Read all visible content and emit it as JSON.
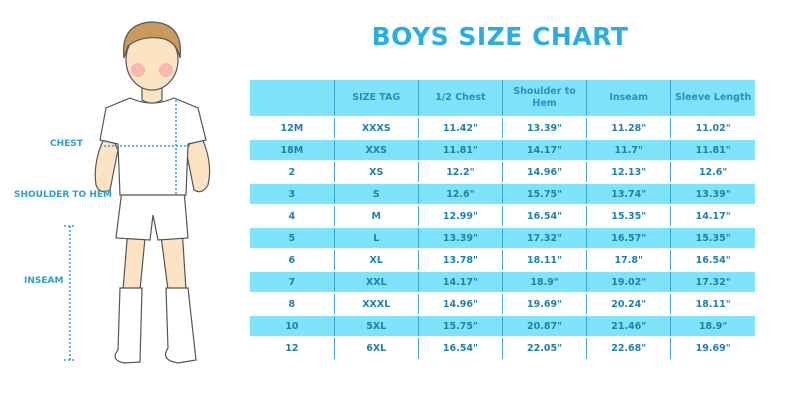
{
  "title": "BOYS SIZE CHART",
  "labels": {
    "chest": "CHEST",
    "shoulder": "SHOULDER TO HEM",
    "inseam": "INSEAM"
  },
  "colors": {
    "accent": "#2aaee2",
    "row_fill": "#7ee4fb",
    "text": "#1f7fae"
  },
  "headers": [
    "",
    "SIZE TAG",
    "1/2 Chest",
    "Shoulder to Hem",
    "Inseam",
    "Sleeve Length"
  ],
  "rows": [
    [
      "12M",
      "XXXS",
      "11.42\"",
      "13.39\"",
      "11.28\"",
      "11.02\""
    ],
    [
      "18M",
      "XXS",
      "11.81\"",
      "14.17\"",
      "11.7\"",
      "11.81\""
    ],
    [
      "2",
      "XS",
      "12.2\"",
      "14.96\"",
      "12.13\"",
      "12.6\""
    ],
    [
      "3",
      "S",
      "12.6\"",
      "15.75\"",
      "13.74\"",
      "13.39\""
    ],
    [
      "4",
      "M",
      "12.99\"",
      "16.54\"",
      "15.35\"",
      "14.17\""
    ],
    [
      "5",
      "L",
      "13.39\"",
      "17.32\"",
      "16.57\"",
      "15.35\""
    ],
    [
      "6",
      "XL",
      "13.78\"",
      "18.11\"",
      "17.8\"",
      "16.54\""
    ],
    [
      "7",
      "XXL",
      "14.17\"",
      "18.9\"",
      "19.02\"",
      "17.32\""
    ],
    [
      "8",
      "XXXL",
      "14.96\"",
      "19.69\"",
      "20.24\"",
      "18.11\""
    ],
    [
      "10",
      "5XL",
      "15.75\"",
      "20.87\"",
      "21.46\"",
      "18.9\""
    ],
    [
      "12",
      "6XL",
      "16.54\"",
      "22.05\"",
      "22.68\"",
      "19.69\""
    ]
  ]
}
